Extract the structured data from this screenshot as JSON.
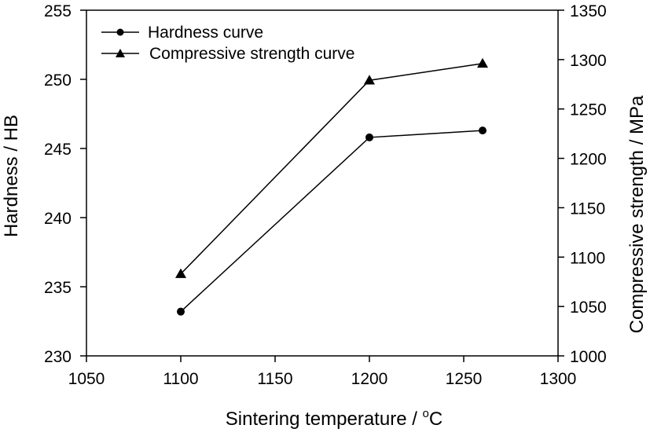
{
  "chart_data": {
    "type": "line",
    "title": "",
    "xlabel": "Sintering temperature / ",
    "xlabel_unit": "C",
    "xlabel_unit_superscript": "o",
    "ylabel": "Hardness / HB",
    "y2label": "Compressive strength / MPa",
    "xlim": [
      1050,
      1300
    ],
    "ylim": [
      230,
      255
    ],
    "y2lim": [
      1000,
      1350
    ],
    "x_ticks": [
      "1050",
      "1100",
      "1150",
      "1200",
      "1250",
      "1300"
    ],
    "y_ticks": [
      "230",
      "235",
      "240",
      "245",
      "250",
      "255"
    ],
    "y2_ticks": [
      "1000",
      "1050",
      "1100",
      "1150",
      "1200",
      "1250",
      "1300",
      "1350"
    ],
    "grid": false,
    "legend_position": "top-left",
    "series": [
      {
        "name": "Hardness curve",
        "axis": "left",
        "marker": "circle",
        "color": "#000000",
        "x": [
          1100,
          1200,
          1260
        ],
        "values": [
          233.2,
          245.8,
          246.3
        ]
      },
      {
        "name": "Compressive strength curve",
        "axis": "right",
        "marker": "triangle",
        "color": "#000000",
        "x": [
          1100,
          1200,
          1260
        ],
        "values": [
          1083,
          1279,
          1296
        ]
      }
    ]
  }
}
